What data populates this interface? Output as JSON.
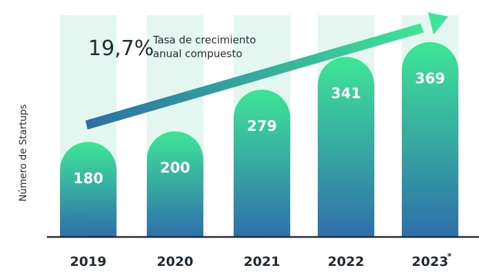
{
  "chart_data": {
    "type": "bar",
    "categories": [
      "2019",
      "2020",
      "2021",
      "2022",
      "2023"
    ],
    "values": [
      180,
      200,
      279,
      341,
      369
    ],
    "value_labels": [
      "180",
      "200",
      "279",
      "341",
      "369"
    ],
    "category_marks": [
      "",
      "",
      "",
      "",
      "*"
    ],
    "ylabel": "Número de Startups",
    "ylim": [
      0,
      420
    ],
    "grid": false,
    "annotation": {
      "value": "19,7%",
      "text_line1": "Tasa de crecimiento",
      "text_line2": "anual compuesto"
    },
    "colors": {
      "bar_top": "#3ee596",
      "bar_bottom": "#2f6fab",
      "bar_background": "#e3f7f0",
      "arrow_start": "#2c6fa3",
      "arrow_end": "#3ee596",
      "axis": "#1f2a30"
    }
  }
}
